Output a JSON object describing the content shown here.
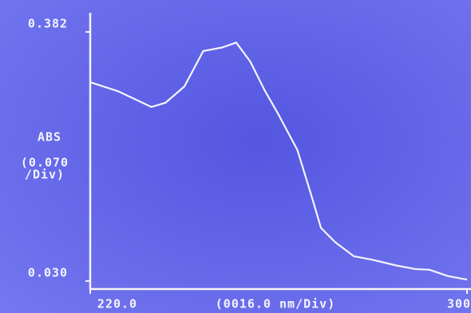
{
  "chart_data": {
    "type": "line",
    "y_label": "ABS",
    "y_scale_label": [
      "(0.070",
      "/Div)"
    ],
    "x_label": "(0016.0 nm/Div)",
    "x": [
      220,
      226,
      233,
      236,
      240,
      244,
      248,
      251,
      254,
      257,
      260,
      264,
      267,
      269,
      272,
      276,
      280,
      285,
      289,
      292,
      296,
      300
    ],
    "series": [
      {
        "color": "#f4f4ff",
        "values": [
          0.311,
          0.298,
          0.276,
          0.282,
          0.305,
          0.355,
          0.36,
          0.367,
          0.34,
          0.3,
          0.265,
          0.215,
          0.15,
          0.105,
          0.085,
          0.065,
          0.06,
          0.052,
          0.047,
          0.046,
          0.037,
          0.032
        ]
      }
    ],
    "xlim": [
      220,
      300
    ],
    "xticks": [
      {
        "value": 220,
        "label": "220.0"
      },
      300
    ],
    "ylim": [
      0.03,
      0.382
    ],
    "yticks": [
      {
        "value": 0.03,
        "label": "0.030"
      },
      0.382
    ]
  }
}
